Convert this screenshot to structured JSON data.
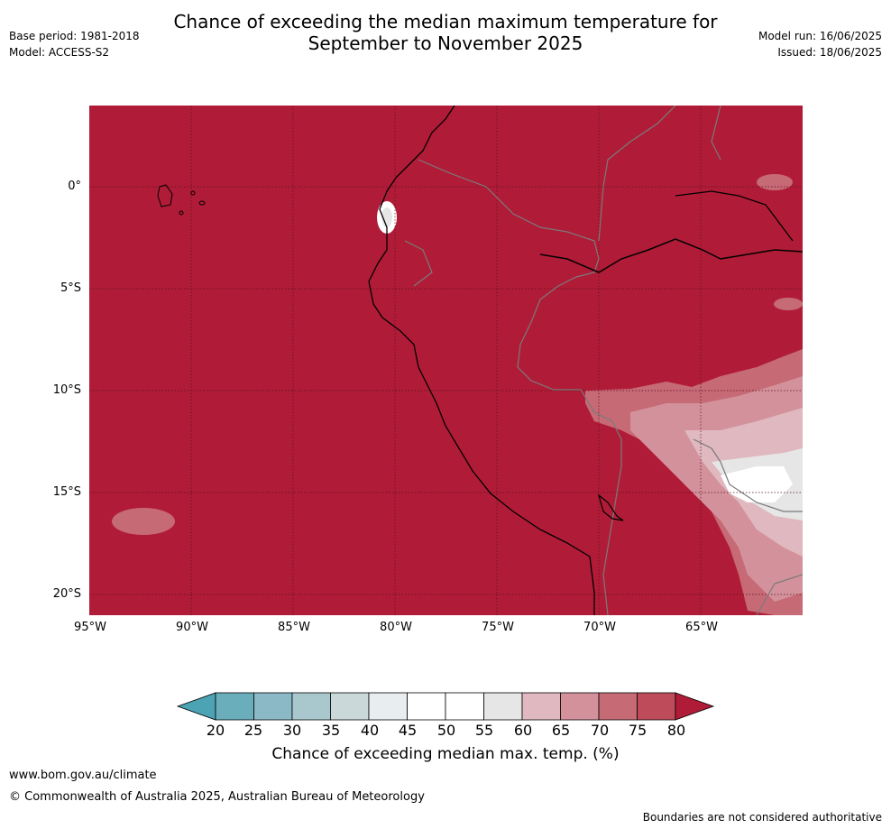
{
  "header": {
    "title_line1": "Chance of exceeding the median maximum temperature for",
    "title_line2": "September to November 2025",
    "base_period": "Base period: 1981-2018",
    "model": "Model: ACCESS-S2",
    "model_run": "Model run: 16/06/2025",
    "issued": "Issued: 18/06/2025"
  },
  "map": {
    "lat_labels": [
      "0°",
      "5°S",
      "10°S",
      "15°S",
      "20°S"
    ],
    "lon_labels": [
      "95°W",
      "90°W",
      "85°W",
      "80°W",
      "75°W",
      "70°W",
      "65°W"
    ],
    "region": "Ecuador, Peru, western Brazil, Bolivia",
    "background_color": "#b01c37",
    "coastline_color": "#000000",
    "border_color": "#7a7a7a"
  },
  "colorbar": {
    "ticks": [
      "20",
      "25",
      "30",
      "35",
      "40",
      "45",
      "50",
      "55",
      "60",
      "65",
      "70",
      "75",
      "80"
    ],
    "colors": [
      "#4ba3b3",
      "#6aadbb",
      "#8bbac6",
      "#a9c8ce",
      "#cad8da",
      "#e8eef0",
      "#ffffff",
      "#ffffff",
      "#e6e6e6",
      "#e0b8bf",
      "#d3929b",
      "#c66a76",
      "#bd4b5a",
      "#b01c37"
    ],
    "label": "Chance of exceeding median max. temp. (%)"
  },
  "footer": {
    "website": "www.bom.gov.au/climate",
    "copyright": "© Commonwealth of Australia 2025, Australian Bureau of Meteorology",
    "disclaimer": "Boundaries are not considered authoritative"
  }
}
